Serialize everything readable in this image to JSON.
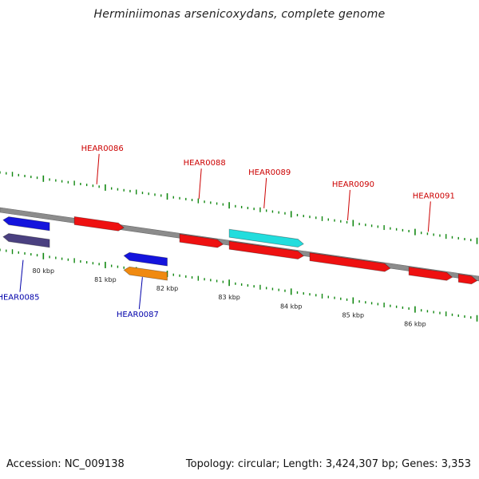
{
  "title": "Herminiimonas arsenicoxydans, complete genome",
  "footer": {
    "accession": "Accession: NC_009138",
    "topology": "Topology: circular; Length: 3,424,307 bp; Genes: 3,353"
  },
  "colors": {
    "forward_gene": "#ee1111",
    "reverse_gene": "#1414dd",
    "highlight_cyan": "#22dddd",
    "orange_gene": "#f08a10",
    "slate_gene": "#4a4080",
    "backbone": "#888888",
    "tick_green": "#118811",
    "label_forward": "#cc0000",
    "label_reverse": "#0000aa"
  },
  "backbone_kbp_range": [
    79.3,
    87.0
  ],
  "scale_labels": [
    {
      "text": "80 kbp",
      "kbp": 80
    },
    {
      "text": "81 kbp",
      "kbp": 81
    },
    {
      "text": "82 kbp",
      "kbp": 82
    },
    {
      "text": "83 kbp",
      "kbp": 83
    },
    {
      "text": "84 kbp",
      "kbp": 84
    },
    {
      "text": "85 kbp",
      "kbp": 85
    },
    {
      "text": "86 kbp",
      "kbp": 86
    }
  ],
  "genes": [
    {
      "name": "HEAR0085",
      "strand": "reverse",
      "label_visible": true,
      "start_kbp": 79.35,
      "end_kbp": 80.1,
      "color": "reverse_gene"
    },
    {
      "name": "",
      "strand": "reverse",
      "label_visible": false,
      "start_kbp": 79.35,
      "end_kbp": 80.1,
      "color": "slate_gene"
    },
    {
      "name": "HEAR0086",
      "strand": "forward",
      "label_visible": true,
      "start_kbp": 80.5,
      "end_kbp": 81.3,
      "color": "forward_gene"
    },
    {
      "name": "HEAR0087",
      "strand": "reverse",
      "label_visible": true,
      "start_kbp": 81.3,
      "end_kbp": 82.0,
      "color": "reverse_gene"
    },
    {
      "name": "",
      "strand": "reverse",
      "label_visible": false,
      "start_kbp": 81.3,
      "end_kbp": 82.0,
      "color": "orange_gene"
    },
    {
      "name": "HEAR0088",
      "strand": "forward",
      "label_visible": true,
      "start_kbp": 82.2,
      "end_kbp": 82.9,
      "color": "forward_gene"
    },
    {
      "name": "HEAR0089",
      "strand": "forward",
      "label_visible": true,
      "start_kbp": 83.0,
      "end_kbp": 84.2,
      "color": "highlight_cyan"
    },
    {
      "name": "",
      "strand": "forward",
      "label_visible": false,
      "start_kbp": 83.0,
      "end_kbp": 84.2,
      "color": "forward_gene"
    },
    {
      "name": "HEAR0090",
      "strand": "forward",
      "label_visible": true,
      "start_kbp": 84.3,
      "end_kbp": 85.6,
      "color": "forward_gene"
    },
    {
      "name": "HEAR0091",
      "strand": "forward",
      "label_visible": true,
      "start_kbp": 85.9,
      "end_kbp": 86.6,
      "color": "forward_gene"
    },
    {
      "name": "",
      "strand": "forward",
      "label_visible": false,
      "start_kbp": 86.7,
      "end_kbp": 87.0,
      "color": "forward_gene"
    }
  ]
}
